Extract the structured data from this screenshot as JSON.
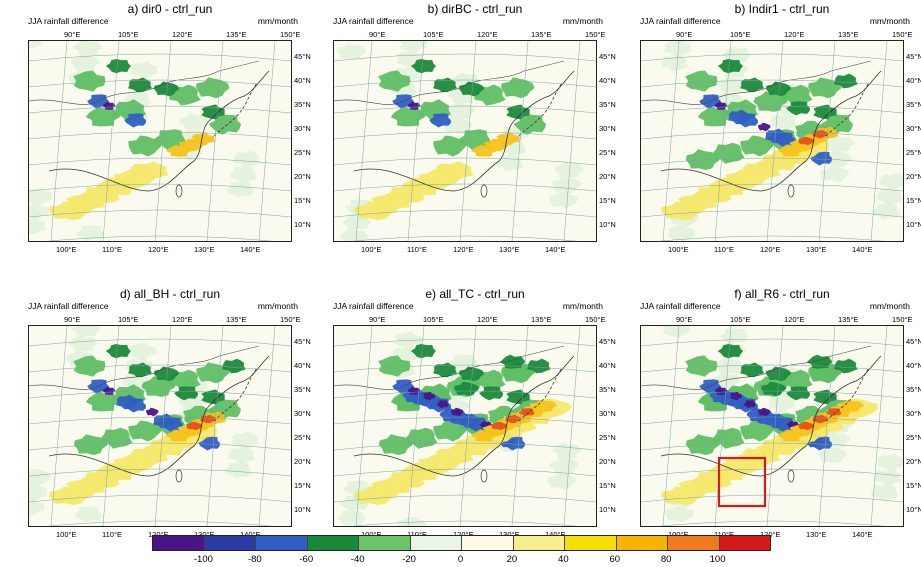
{
  "panels": [
    {
      "title": "a) dir0 - ctrl_run",
      "left_label": "JJA rainfall difference",
      "right_label": "mm/month",
      "top_ticks": [
        "90°E",
        "105°E",
        "120°E",
        "135°E",
        "150°E"
      ],
      "bottom_ticks": [
        "100°E",
        "110°E",
        "120°E",
        "130°E",
        "140°E"
      ],
      "lat_ticks": [
        "45°N",
        "40°N",
        "35°N",
        "30°N",
        "25°N",
        "20°N",
        "15°N",
        "10°N"
      ],
      "signal": "weak"
    },
    {
      "title": "b) dirBC - ctrl_run",
      "left_label": "JJA rainfall difference",
      "right_label": "mm/month",
      "top_ticks": [
        "90°E",
        "105°E",
        "120°E",
        "135°E",
        "150°E"
      ],
      "bottom_ticks": [
        "100°E",
        "110°E",
        "120°E",
        "130°E",
        "140°E"
      ],
      "lat_ticks": [
        "45°N",
        "40°N",
        "35°N",
        "30°N",
        "25°N",
        "20°N",
        "15°N",
        "10°N"
      ],
      "signal": "weak"
    },
    {
      "title": "b) Indir1 - ctrl_run",
      "left_label": "JJA rainfall difference",
      "right_label": "mm/month",
      "top_ticks": [
        "90°E",
        "105°E",
        "120°E",
        "135°E",
        "150°E"
      ],
      "bottom_ticks": [
        "100°E",
        "110°E",
        "120°E",
        "130°E",
        "140°E"
      ],
      "lat_ticks": [
        "45°N",
        "40°N",
        "35°N",
        "30°N",
        "25°N",
        "20°N",
        "15°N",
        "10°N"
      ],
      "signal": "moderate"
    },
    {
      "title": "d) all_BH - ctrl_run",
      "left_label": "JJA rainfall difference",
      "right_label": "mm/month",
      "top_ticks": [
        "90°E",
        "105°E",
        "120°E",
        "135°E",
        "150°E"
      ],
      "bottom_ticks": [
        "100°E",
        "110°E",
        "120°E",
        "130°E",
        "140°E"
      ],
      "lat_ticks": [
        "45°N",
        "40°N",
        "35°N",
        "30°N",
        "25°N",
        "20°N",
        "15°N",
        "10°N"
      ],
      "signal": "moderate"
    },
    {
      "title": "e) all_TC - ctrl_run",
      "left_label": "JJA rainfall difference",
      "right_label": "mm/month",
      "top_ticks": [
        "90°E",
        "105°E",
        "120°E",
        "135°E",
        "150°E"
      ],
      "bottom_ticks": [
        "100°E",
        "110°E",
        "120°E",
        "130°E",
        "140°E"
      ],
      "lat_ticks": [
        "45°N",
        "40°N",
        "35°N",
        "30°N",
        "25°N",
        "20°N",
        "15°N",
        "10°N"
      ],
      "signal": "strong"
    },
    {
      "title": "f) all_R6 - ctrl_run",
      "left_label": "JJA rainfall difference",
      "right_label": "mm/month",
      "top_ticks": [
        "90°E",
        "105°E",
        "120°E",
        "135°E",
        "150°E"
      ],
      "bottom_ticks": [
        "100°E",
        "110°E",
        "120°E",
        "130°E",
        "140°E"
      ],
      "lat_ticks": [
        "45°N",
        "40°N",
        "35°N",
        "30°N",
        "25°N",
        "20°N",
        "15°N",
        "10°N"
      ],
      "signal": "strong",
      "highlight_box": true
    }
  ],
  "colorbar": {
    "colors": [
      "#4a1486",
      "#2c3aa6",
      "#2f5fc4",
      "#1a8a3a",
      "#6cc46a",
      "#eaf5e6",
      "#fdfbe6",
      "#f7ef8c",
      "#f5e000",
      "#f7b400",
      "#f07a1e",
      "#d7191c"
    ],
    "ticks": [
      "-100",
      "-80",
      "-60",
      "-40",
      "-20",
      "0",
      "20",
      "40",
      "60",
      "80",
      "100"
    ]
  },
  "highlight_color": "#d7191c"
}
